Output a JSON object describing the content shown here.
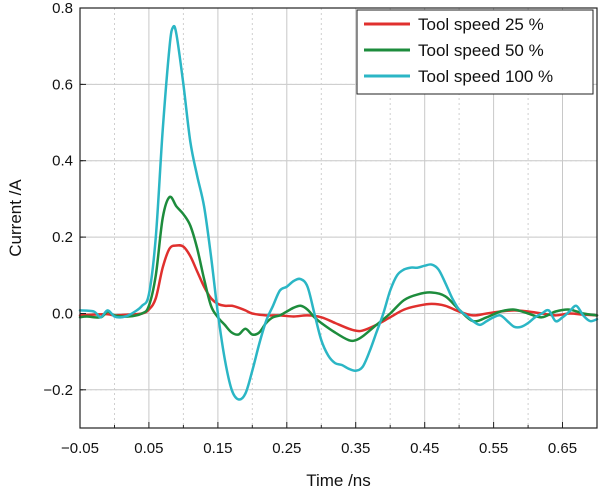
{
  "chart_data": {
    "type": "line",
    "xlabel": "Time /ns",
    "ylabel": "Current /A",
    "xlim": [
      -0.05,
      0.7
    ],
    "ylim": [
      -0.3,
      0.8
    ],
    "x_ticks": [
      -0.05,
      0.05,
      0.15,
      0.25,
      0.35,
      0.45,
      0.55,
      0.65
    ],
    "x_tick_labels": [
      "−0.05",
      "0.05",
      "0.15",
      "0.25",
      "0.35",
      "0.45",
      "0.55",
      "0.65"
    ],
    "y_ticks": [
      -0.2,
      0.0,
      0.2,
      0.4,
      0.6,
      0.8
    ],
    "y_tick_labels": [
      "−0.2",
      "0.0",
      "0.2",
      "0.4",
      "0.6",
      "0.8"
    ],
    "grid": true,
    "legend_position": "top-right",
    "series": [
      {
        "name": "Tool speed 25 %",
        "color": "#e0302e",
        "points": [
          [
            -0.05,
            -0.005
          ],
          [
            -0.03,
            -0.003
          ],
          [
            -0.01,
            -0.002
          ],
          [
            0.0,
            -0.005
          ],
          [
            0.02,
            -0.003
          ],
          [
            0.04,
            0.0
          ],
          [
            0.05,
            0.01
          ],
          [
            0.06,
            0.04
          ],
          [
            0.07,
            0.12
          ],
          [
            0.08,
            0.17
          ],
          [
            0.09,
            0.178
          ],
          [
            0.1,
            0.175
          ],
          [
            0.11,
            0.15
          ],
          [
            0.12,
            0.11
          ],
          [
            0.13,
            0.07
          ],
          [
            0.14,
            0.04
          ],
          [
            0.15,
            0.025
          ],
          [
            0.16,
            0.02
          ],
          [
            0.17,
            0.02
          ],
          [
            0.18,
            0.015
          ],
          [
            0.19,
            0.008
          ],
          [
            0.2,
            0.0
          ],
          [
            0.22,
            -0.005
          ],
          [
            0.24,
            -0.005
          ],
          [
            0.26,
            -0.008
          ],
          [
            0.28,
            -0.005
          ],
          [
            0.3,
            -0.01
          ],
          [
            0.32,
            -0.025
          ],
          [
            0.34,
            -0.04
          ],
          [
            0.35,
            -0.045
          ],
          [
            0.36,
            -0.045
          ],
          [
            0.38,
            -0.03
          ],
          [
            0.4,
            -0.01
          ],
          [
            0.42,
            0.01
          ],
          [
            0.44,
            0.02
          ],
          [
            0.46,
            0.025
          ],
          [
            0.48,
            0.02
          ],
          [
            0.5,
            0.005
          ],
          [
            0.52,
            -0.005
          ],
          [
            0.54,
            0.0
          ],
          [
            0.56,
            0.005
          ],
          [
            0.58,
            0.008
          ],
          [
            0.6,
            0.005
          ],
          [
            0.62,
            0.0
          ],
          [
            0.64,
            -0.005
          ],
          [
            0.66,
            0.0
          ],
          [
            0.68,
            -0.003
          ],
          [
            0.7,
            -0.005
          ]
        ]
      },
      {
        "name": "Tool speed 50 %",
        "color": "#1d8c3c",
        "points": [
          [
            -0.05,
            -0.01
          ],
          [
            -0.04,
            -0.008
          ],
          [
            -0.02,
            -0.01
          ],
          [
            -0.01,
            0.005
          ],
          [
            0.0,
            -0.005
          ],
          [
            0.02,
            -0.008
          ],
          [
            0.04,
            0.0
          ],
          [
            0.05,
            0.02
          ],
          [
            0.06,
            0.1
          ],
          [
            0.07,
            0.25
          ],
          [
            0.08,
            0.305
          ],
          [
            0.09,
            0.28
          ],
          [
            0.1,
            0.26
          ],
          [
            0.11,
            0.23
          ],
          [
            0.12,
            0.17
          ],
          [
            0.13,
            0.09
          ],
          [
            0.14,
            0.02
          ],
          [
            0.15,
            -0.01
          ],
          [
            0.16,
            -0.03
          ],
          [
            0.17,
            -0.05
          ],
          [
            0.18,
            -0.055
          ],
          [
            0.19,
            -0.04
          ],
          [
            0.2,
            -0.055
          ],
          [
            0.21,
            -0.05
          ],
          [
            0.22,
            -0.025
          ],
          [
            0.23,
            -0.01
          ],
          [
            0.24,
            -0.005
          ],
          [
            0.25,
            0.005
          ],
          [
            0.26,
            0.015
          ],
          [
            0.27,
            0.02
          ],
          [
            0.28,
            0.01
          ],
          [
            0.29,
            -0.01
          ],
          [
            0.3,
            -0.025
          ],
          [
            0.32,
            -0.05
          ],
          [
            0.34,
            -0.07
          ],
          [
            0.35,
            -0.07
          ],
          [
            0.36,
            -0.06
          ],
          [
            0.38,
            -0.03
          ],
          [
            0.4,
            0.0
          ],
          [
            0.42,
            0.035
          ],
          [
            0.44,
            0.05
          ],
          [
            0.46,
            0.055
          ],
          [
            0.48,
            0.045
          ],
          [
            0.5,
            0.01
          ],
          [
            0.52,
            -0.02
          ],
          [
            0.54,
            -0.01
          ],
          [
            0.56,
            0.005
          ],
          [
            0.58,
            0.01
          ],
          [
            0.6,
            0.0
          ],
          [
            0.62,
            -0.01
          ],
          [
            0.64,
            0.005
          ],
          [
            0.66,
            0.01
          ],
          [
            0.68,
            0.0
          ],
          [
            0.7,
            -0.005
          ]
        ]
      },
      {
        "name": "Tool speed 100 %",
        "color": "#2bb6c5",
        "points": [
          [
            -0.05,
            0.008
          ],
          [
            -0.03,
            0.005
          ],
          [
            -0.02,
            -0.01
          ],
          [
            -0.01,
            0.008
          ],
          [
            0.0,
            -0.008
          ],
          [
            0.01,
            -0.01
          ],
          [
            0.02,
            -0.005
          ],
          [
            0.03,
            0.005
          ],
          [
            0.04,
            0.02
          ],
          [
            0.05,
            0.05
          ],
          [
            0.06,
            0.2
          ],
          [
            0.07,
            0.48
          ],
          [
            0.08,
            0.7
          ],
          [
            0.085,
            0.75
          ],
          [
            0.09,
            0.73
          ],
          [
            0.1,
            0.6
          ],
          [
            0.11,
            0.45
          ],
          [
            0.12,
            0.36
          ],
          [
            0.13,
            0.28
          ],
          [
            0.14,
            0.15
          ],
          [
            0.15,
            0.0
          ],
          [
            0.16,
            -0.12
          ],
          [
            0.17,
            -0.2
          ],
          [
            0.18,
            -0.225
          ],
          [
            0.19,
            -0.21
          ],
          [
            0.2,
            -0.15
          ],
          [
            0.21,
            -0.08
          ],
          [
            0.22,
            -0.02
          ],
          [
            0.23,
            0.02
          ],
          [
            0.24,
            0.06
          ],
          [
            0.25,
            0.07
          ],
          [
            0.26,
            0.085
          ],
          [
            0.27,
            0.09
          ],
          [
            0.28,
            0.07
          ],
          [
            0.29,
            0.0
          ],
          [
            0.3,
            -0.07
          ],
          [
            0.31,
            -0.11
          ],
          [
            0.32,
            -0.13
          ],
          [
            0.33,
            -0.135
          ],
          [
            0.34,
            -0.145
          ],
          [
            0.35,
            -0.15
          ],
          [
            0.36,
            -0.14
          ],
          [
            0.37,
            -0.1
          ],
          [
            0.38,
            -0.05
          ],
          [
            0.39,
            0.0
          ],
          [
            0.4,
            0.06
          ],
          [
            0.41,
            0.1
          ],
          [
            0.42,
            0.115
          ],
          [
            0.43,
            0.12
          ],
          [
            0.44,
            0.12
          ],
          [
            0.45,
            0.125
          ],
          [
            0.46,
            0.128
          ],
          [
            0.47,
            0.115
          ],
          [
            0.48,
            0.08
          ],
          [
            0.49,
            0.04
          ],
          [
            0.5,
            0.01
          ],
          [
            0.51,
            -0.005
          ],
          [
            0.52,
            -0.02
          ],
          [
            0.53,
            -0.03
          ],
          [
            0.54,
            -0.02
          ],
          [
            0.55,
            -0.01
          ],
          [
            0.56,
            -0.005
          ],
          [
            0.57,
            -0.02
          ],
          [
            0.58,
            -0.035
          ],
          [
            0.59,
            -0.035
          ],
          [
            0.6,
            -0.025
          ],
          [
            0.61,
            -0.01
          ],
          [
            0.62,
            0.0
          ],
          [
            0.63,
            0.008
          ],
          [
            0.64,
            -0.02
          ],
          [
            0.65,
            -0.01
          ],
          [
            0.66,
            0.005
          ],
          [
            0.67,
            0.02
          ],
          [
            0.68,
            -0.005
          ],
          [
            0.69,
            -0.02
          ],
          [
            0.7,
            -0.015
          ]
        ]
      }
    ]
  }
}
